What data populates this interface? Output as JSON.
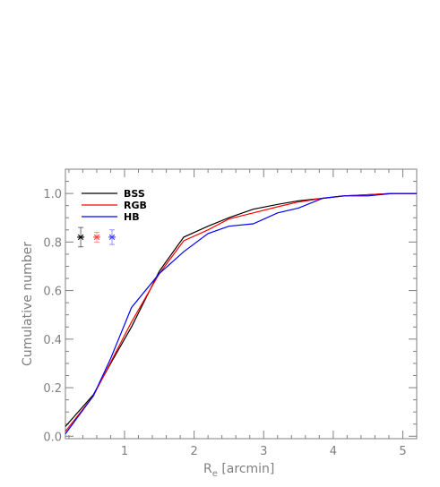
{
  "chart_data": {
    "type": "line",
    "title": "",
    "xlabel": "R_e [arcmin]",
    "xlabel_main": "R",
    "xlabel_sub": "e",
    "xlabel_unit": "[arcmin]",
    "ylabel": "Cumulative number",
    "xlim": [
      0.15,
      5.2
    ],
    "ylim": [
      -0.01,
      1.1
    ],
    "x_ticks": [
      1,
      2,
      3,
      4,
      5
    ],
    "x_tick_labels": [
      "1",
      "2",
      "3",
      "4",
      "5"
    ],
    "y_ticks": [
      0.0,
      0.2,
      0.4,
      0.6,
      0.8,
      1.0
    ],
    "y_tick_labels": [
      "0.0",
      "0.2",
      "0.4",
      "0.6",
      "0.8",
      "1.0"
    ],
    "grid": false,
    "legend_position": "top-left",
    "series": [
      {
        "name": "BSS",
        "color": "#000000",
        "x": [
          0.15,
          0.55,
          0.8,
          1.1,
          1.5,
          1.85,
          2.2,
          2.5,
          2.85,
          3.2,
          3.5,
          3.85,
          4.15,
          4.5,
          4.85,
          5.2
        ],
        "y": [
          0.04,
          0.17,
          0.3,
          0.45,
          0.68,
          0.82,
          0.865,
          0.9,
          0.935,
          0.955,
          0.97,
          0.98,
          0.99,
          0.995,
          1.0,
          1.0
        ]
      },
      {
        "name": "RGB",
        "color": "#ff0000",
        "x": [
          0.15,
          0.55,
          0.8,
          1.1,
          1.5,
          1.85,
          2.2,
          2.5,
          2.85,
          3.2,
          3.5,
          3.85,
          4.15,
          4.5,
          4.85,
          5.2
        ],
        "y": [
          0.02,
          0.165,
          0.305,
          0.47,
          0.67,
          0.805,
          0.85,
          0.895,
          0.92,
          0.945,
          0.965,
          0.98,
          0.99,
          0.995,
          1.0,
          1.0
        ]
      },
      {
        "name": "HB",
        "color": "#0000ff",
        "x": [
          0.15,
          0.55,
          0.8,
          1.1,
          1.5,
          1.85,
          2.2,
          2.5,
          2.85,
          3.2,
          3.5,
          3.85,
          4.15,
          4.5,
          4.85,
          5.2
        ],
        "y": [
          0.01,
          0.165,
          0.32,
          0.53,
          0.67,
          0.76,
          0.835,
          0.865,
          0.875,
          0.92,
          0.94,
          0.98,
          0.99,
          0.99,
          1.0,
          1.0
        ]
      }
    ],
    "error_markers": [
      {
        "series": "BSS",
        "color": "#000000",
        "x": 0.37,
        "y": 0.82,
        "err": 0.04
      },
      {
        "series": "RGB",
        "color": "#ff4040",
        "x": 0.6,
        "y": 0.82,
        "err": 0.02
      },
      {
        "series": "HB",
        "color": "#4040ff",
        "x": 0.82,
        "y": 0.82,
        "err": 0.03
      }
    ]
  }
}
